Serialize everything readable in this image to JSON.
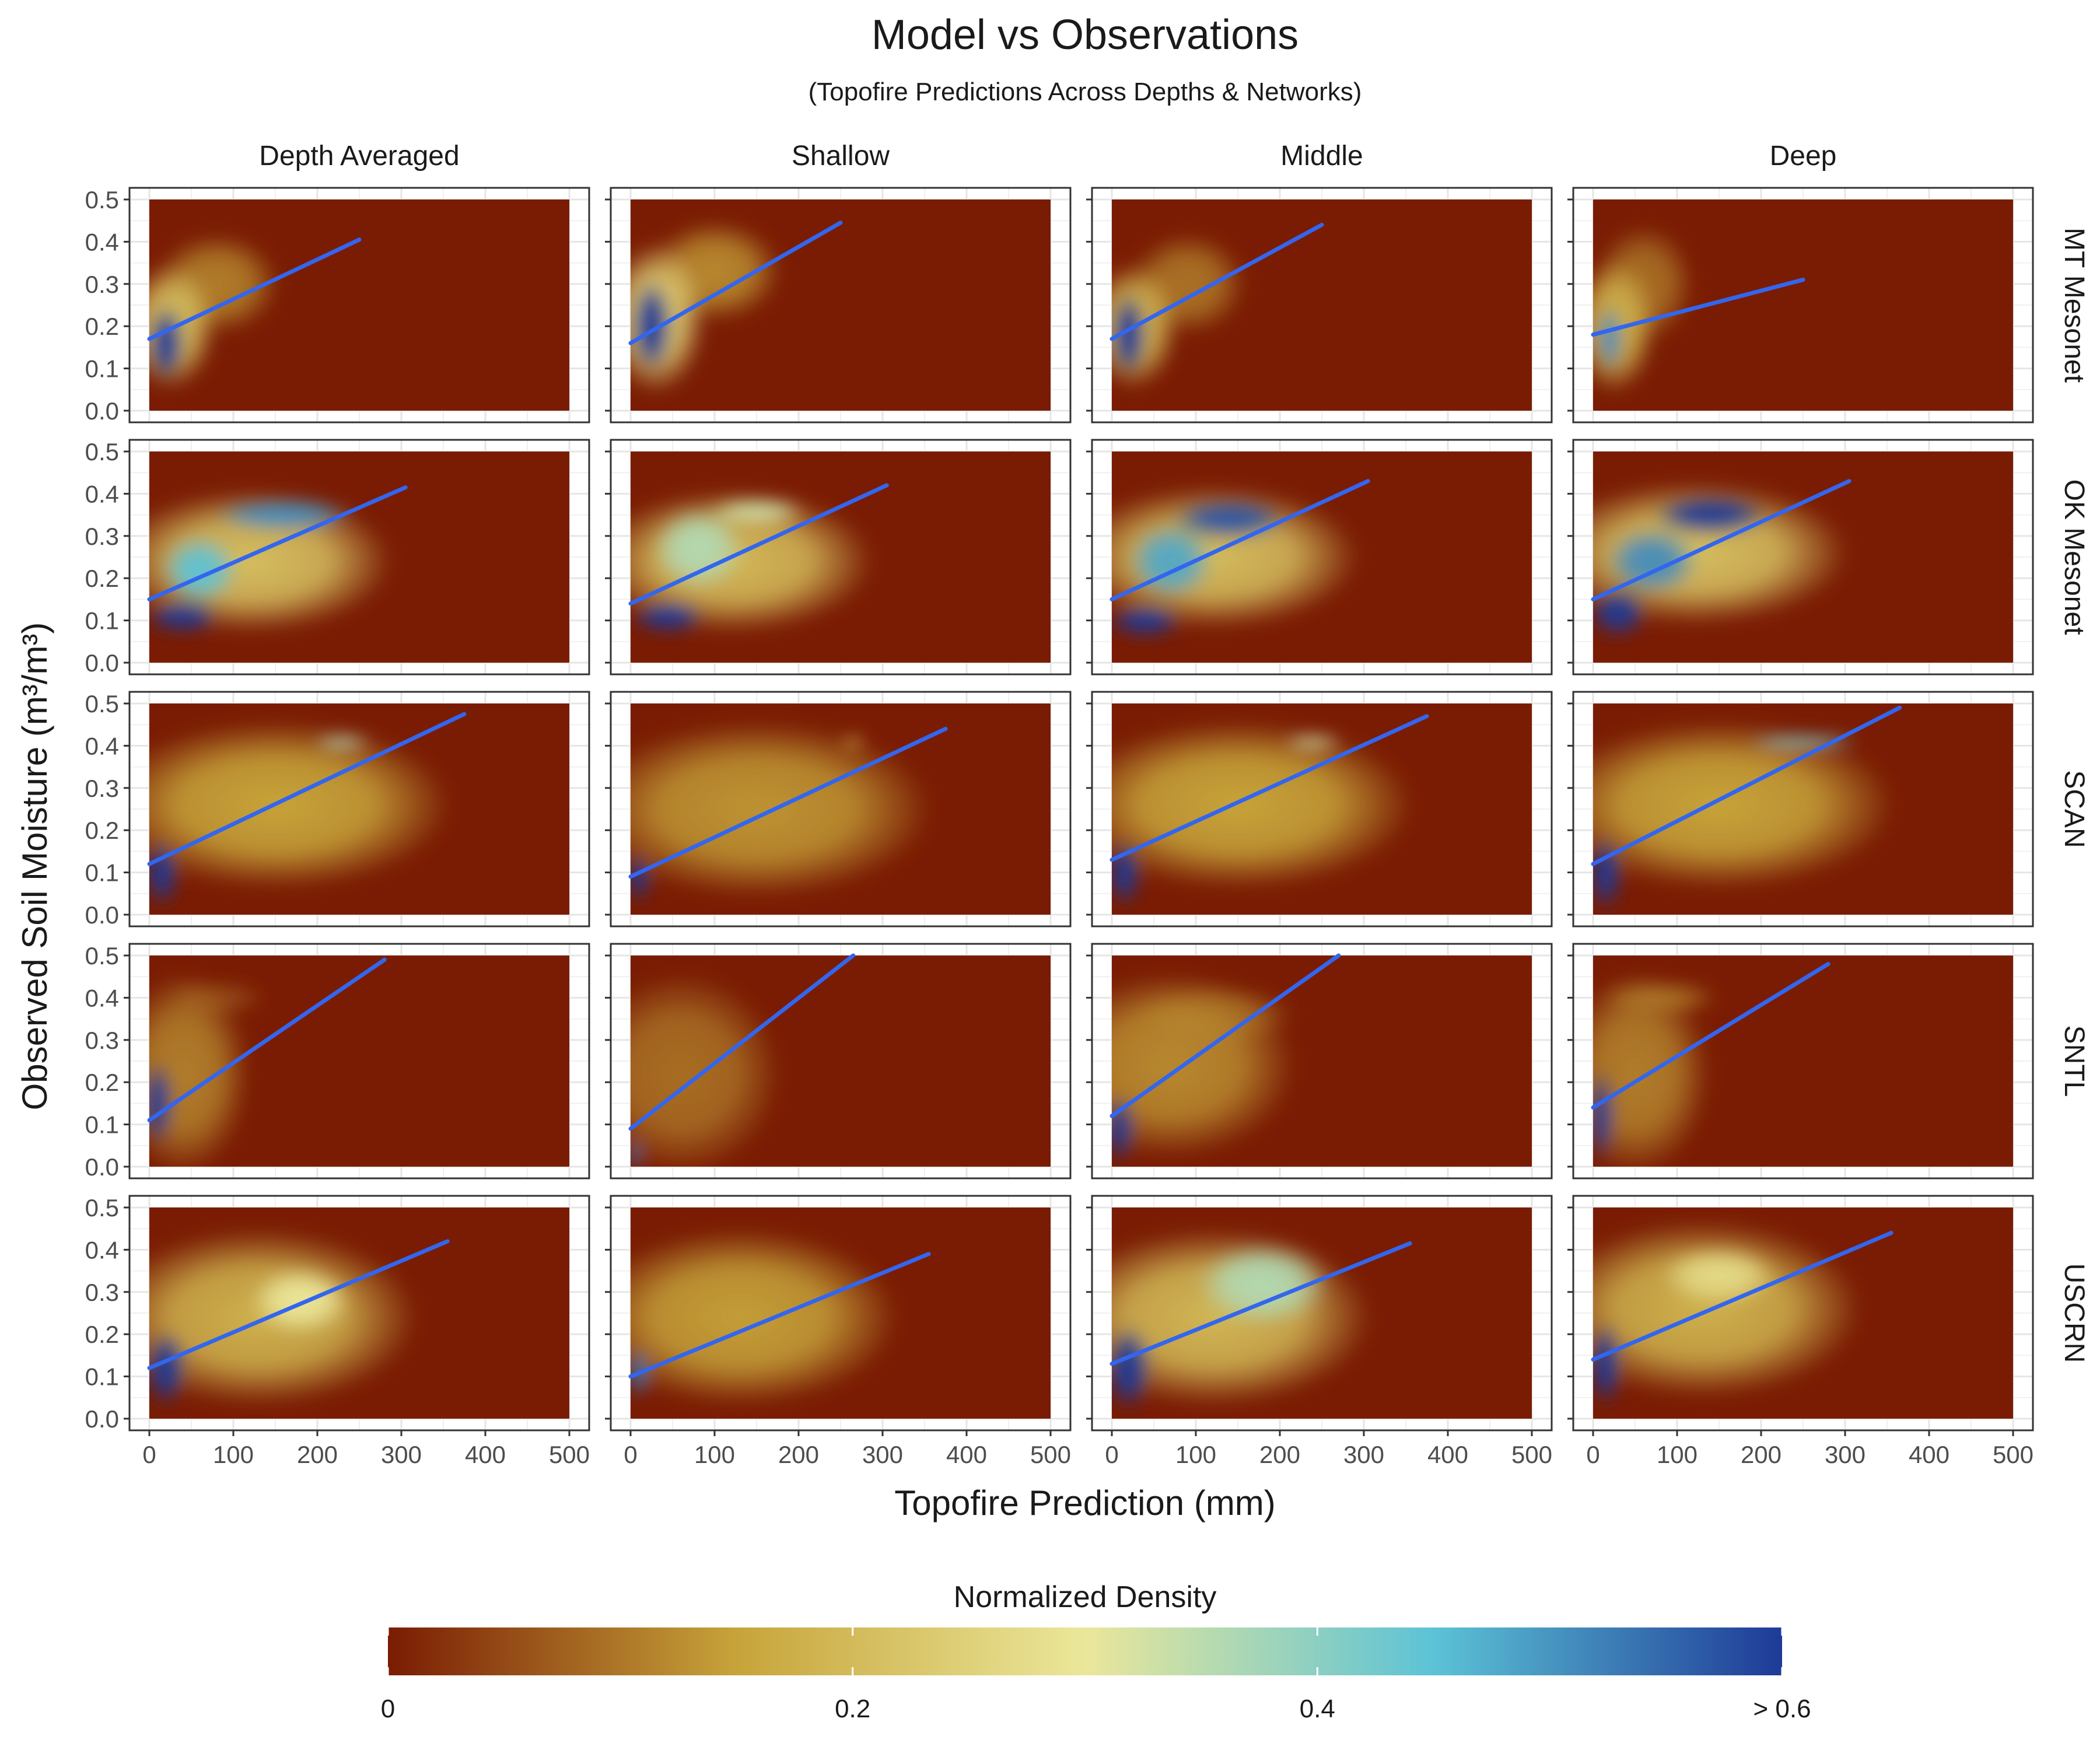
{
  "chart_data": {
    "type": "heatmap",
    "title": "Model vs Observations",
    "subtitle": "(Topofire Predictions Across Depths & Networks)",
    "xlabel": "Topofire Prediction (mm)",
    "ylabel": "Observed Soil Moisture (m³/m³)",
    "xlim": [
      0,
      500
    ],
    "ylim": [
      0,
      0.5
    ],
    "x_ticks": [
      "0",
      "100",
      "200",
      "300",
      "400",
      "500"
    ],
    "y_ticks": [
      "0.0",
      "0.1",
      "0.2",
      "0.3",
      "0.4",
      "0.5"
    ],
    "columns": [
      "Depth Averaged",
      "Shallow",
      "Middle",
      "Deep"
    ],
    "rows": [
      "MT Mesonet",
      "OK Mesonet",
      "SCAN",
      "SNTL",
      "USCRN"
    ],
    "colorbar": {
      "title": "Normalized Density",
      "range": [
        0,
        0.6
      ],
      "tick_labels": [
        {
          "value": 0,
          "label": "0"
        },
        {
          "value": 0.2,
          "label": "0.2"
        },
        {
          "value": 0.4,
          "label": "0.4"
        },
        {
          "value": 0.6,
          "label": "> 0.6"
        }
      ],
      "colors": [
        "#7a1c03",
        "#c7a43a",
        "#ebe79a",
        "#5cc3d6",
        "#1e3a97"
      ]
    },
    "background_color": "#7a1c03",
    "fit_line_color": "#3366ee",
    "panels": [
      {
        "row": "MT Mesonet",
        "col": "Depth Averaged",
        "fit": {
          "x": [
            0,
            250
          ],
          "y": [
            0.17,
            0.405
          ]
        },
        "density": [
          {
            "cx": 25,
            "cy": 0.2,
            "rx": 55,
            "ry": 0.15,
            "d": 0.35
          },
          {
            "cx": 20,
            "cy": 0.16,
            "rx": 22,
            "ry": 0.09,
            "d": 1.0
          },
          {
            "cx": 80,
            "cy": 0.3,
            "rx": 75,
            "ry": 0.12,
            "d": 0.18
          }
        ]
      },
      {
        "row": "MT Mesonet",
        "col": "Shallow",
        "fit": {
          "x": [
            0,
            250
          ],
          "y": [
            0.16,
            0.445
          ]
        },
        "density": [
          {
            "cx": 30,
            "cy": 0.22,
            "rx": 60,
            "ry": 0.18,
            "d": 0.4
          },
          {
            "cx": 25,
            "cy": 0.2,
            "rx": 25,
            "ry": 0.11,
            "d": 1.0
          },
          {
            "cx": 100,
            "cy": 0.33,
            "rx": 80,
            "ry": 0.12,
            "d": 0.2
          }
        ]
      },
      {
        "row": "MT Mesonet",
        "col": "Middle",
        "fit": {
          "x": [
            0,
            250
          ],
          "y": [
            0.17,
            0.44
          ]
        },
        "density": [
          {
            "cx": 25,
            "cy": 0.2,
            "rx": 55,
            "ry": 0.15,
            "d": 0.32
          },
          {
            "cx": 20,
            "cy": 0.18,
            "rx": 22,
            "ry": 0.1,
            "d": 1.0
          },
          {
            "cx": 90,
            "cy": 0.3,
            "rx": 70,
            "ry": 0.12,
            "d": 0.16
          }
        ]
      },
      {
        "row": "MT Mesonet",
        "col": "Deep",
        "fit": {
          "x": [
            0,
            250
          ],
          "y": [
            0.18,
            0.31
          ]
        },
        "density": [
          {
            "cx": 25,
            "cy": 0.2,
            "rx": 50,
            "ry": 0.16,
            "d": 0.3
          },
          {
            "cx": 20,
            "cy": 0.17,
            "rx": 15,
            "ry": 0.08,
            "d": 0.85
          },
          {
            "cx": 60,
            "cy": 0.3,
            "rx": 60,
            "ry": 0.14,
            "d": 0.15
          }
        ]
      },
      {
        "row": "OK Mesonet",
        "col": "Depth Averaged",
        "fit": {
          "x": [
            0,
            305
          ],
          "y": [
            0.15,
            0.415
          ]
        },
        "density": [
          {
            "cx": 120,
            "cy": 0.24,
            "rx": 170,
            "ry": 0.17,
            "d": 0.35
          },
          {
            "cx": 40,
            "cy": 0.11,
            "rx": 45,
            "ry": 0.04,
            "d": 1.0
          },
          {
            "cx": 60,
            "cy": 0.22,
            "rx": 45,
            "ry": 0.08,
            "d": 0.75
          },
          {
            "cx": 160,
            "cy": 0.35,
            "rx": 85,
            "ry": 0.04,
            "d": 0.85
          }
        ]
      },
      {
        "row": "OK Mesonet",
        "col": "Shallow",
        "fit": {
          "x": [
            0,
            305
          ],
          "y": [
            0.14,
            0.42
          ]
        },
        "density": [
          {
            "cx": 120,
            "cy": 0.24,
            "rx": 170,
            "ry": 0.17,
            "d": 0.33
          },
          {
            "cx": 45,
            "cy": 0.11,
            "rx": 45,
            "ry": 0.04,
            "d": 1.0
          },
          {
            "cx": 80,
            "cy": 0.27,
            "rx": 55,
            "ry": 0.1,
            "d": 0.6
          },
          {
            "cx": 150,
            "cy": 0.36,
            "rx": 60,
            "ry": 0.03,
            "d": 0.55
          }
        ]
      },
      {
        "row": "OK Mesonet",
        "col": "Middle",
        "fit": {
          "x": [
            0,
            305
          ],
          "y": [
            0.15,
            0.43
          ]
        },
        "density": [
          {
            "cx": 120,
            "cy": 0.25,
            "rx": 175,
            "ry": 0.17,
            "d": 0.34
          },
          {
            "cx": 40,
            "cy": 0.1,
            "rx": 45,
            "ry": 0.04,
            "d": 1.0
          },
          {
            "cx": 70,
            "cy": 0.24,
            "rx": 50,
            "ry": 0.09,
            "d": 0.8
          },
          {
            "cx": 140,
            "cy": 0.34,
            "rx": 70,
            "ry": 0.05,
            "d": 0.95
          }
        ]
      },
      {
        "row": "OK Mesonet",
        "col": "Deep",
        "fit": {
          "x": [
            0,
            305
          ],
          "y": [
            0.15,
            0.43
          ]
        },
        "density": [
          {
            "cx": 120,
            "cy": 0.26,
            "rx": 185,
            "ry": 0.17,
            "d": 0.35
          },
          {
            "cx": 30,
            "cy": 0.12,
            "rx": 35,
            "ry": 0.06,
            "d": 1.0
          },
          {
            "cx": 70,
            "cy": 0.24,
            "rx": 55,
            "ry": 0.08,
            "d": 0.85
          },
          {
            "cx": 140,
            "cy": 0.35,
            "rx": 70,
            "ry": 0.05,
            "d": 1.0
          }
        ]
      },
      {
        "row": "SCAN",
        "col": "Depth Averaged",
        "fit": {
          "x": [
            0,
            375
          ],
          "y": [
            0.12,
            0.475
          ]
        },
        "density": [
          {
            "cx": 150,
            "cy": 0.26,
            "rx": 210,
            "ry": 0.2,
            "d": 0.25
          },
          {
            "cx": 15,
            "cy": 0.1,
            "rx": 20,
            "ry": 0.08,
            "d": 1.0
          },
          {
            "cx": 230,
            "cy": 0.41,
            "rx": 35,
            "ry": 0.015,
            "d": 0.6
          }
        ]
      },
      {
        "row": "SCAN",
        "col": "Shallow",
        "fit": {
          "x": [
            0,
            375
          ],
          "y": [
            0.09,
            0.44
          ]
        },
        "density": [
          {
            "cx": 150,
            "cy": 0.25,
            "rx": 210,
            "ry": 0.21,
            "d": 0.22
          },
          {
            "cx": 10,
            "cy": 0.09,
            "rx": 14,
            "ry": 0.06,
            "d": 1.0
          },
          {
            "cx": 265,
            "cy": 0.41,
            "rx": 15,
            "ry": 0.012,
            "d": 0.3
          }
        ]
      },
      {
        "row": "SCAN",
        "col": "Middle",
        "fit": {
          "x": [
            0,
            375
          ],
          "y": [
            0.13,
            0.47
          ]
        },
        "density": [
          {
            "cx": 150,
            "cy": 0.26,
            "rx": 210,
            "ry": 0.2,
            "d": 0.25
          },
          {
            "cx": 15,
            "cy": 0.1,
            "rx": 20,
            "ry": 0.08,
            "d": 1.0
          },
          {
            "cx": 240,
            "cy": 0.41,
            "rx": 35,
            "ry": 0.015,
            "d": 0.55
          }
        ]
      },
      {
        "row": "SCAN",
        "col": "Deep",
        "fit": {
          "x": [
            0,
            365
          ],
          "y": [
            0.12,
            0.49
          ]
        },
        "density": [
          {
            "cx": 150,
            "cy": 0.26,
            "rx": 210,
            "ry": 0.2,
            "d": 0.25
          },
          {
            "cx": 15,
            "cy": 0.1,
            "rx": 20,
            "ry": 0.09,
            "d": 1.0
          },
          {
            "cx": 250,
            "cy": 0.41,
            "rx": 70,
            "ry": 0.015,
            "d": 0.7
          }
        ]
      },
      {
        "row": "SNTL",
        "col": "Depth Averaged",
        "fit": {
          "x": [
            0,
            280
          ],
          "y": [
            0.11,
            0.49
          ]
        },
        "density": [
          {
            "cx": 40,
            "cy": 0.22,
            "rx": 80,
            "ry": 0.24,
            "d": 0.18
          },
          {
            "cx": 10,
            "cy": 0.15,
            "rx": 18,
            "ry": 0.1,
            "d": 1.0
          },
          {
            "cx": 80,
            "cy": 0.4,
            "rx": 60,
            "ry": 0.04,
            "d": 0.08
          }
        ]
      },
      {
        "row": "SNTL",
        "col": "Shallow",
        "fit": {
          "x": [
            0,
            265
          ],
          "y": [
            0.09,
            0.5
          ]
        },
        "density": [
          {
            "cx": 60,
            "cy": 0.22,
            "rx": 120,
            "ry": 0.24,
            "d": 0.15
          },
          {
            "cx": 5,
            "cy": 0.03,
            "rx": 8,
            "ry": 0.04,
            "d": 0.9
          }
        ]
      },
      {
        "row": "SNTL",
        "col": "Middle",
        "fit": {
          "x": [
            0,
            270
          ],
          "y": [
            0.12,
            0.5
          ]
        },
        "density": [
          {
            "cx": 70,
            "cy": 0.24,
            "rx": 150,
            "ry": 0.22,
            "d": 0.2
          },
          {
            "cx": 10,
            "cy": 0.09,
            "rx": 18,
            "ry": 0.08,
            "d": 1.0
          },
          {
            "cx": 120,
            "cy": 0.36,
            "rx": 100,
            "ry": 0.07,
            "d": 0.12
          }
        ]
      },
      {
        "row": "SNTL",
        "col": "Deep",
        "fit": {
          "x": [
            0,
            280
          ],
          "y": [
            0.14,
            0.48
          ]
        },
        "density": [
          {
            "cx": 50,
            "cy": 0.22,
            "rx": 90,
            "ry": 0.24,
            "d": 0.18
          },
          {
            "cx": 10,
            "cy": 0.12,
            "rx": 15,
            "ry": 0.11,
            "d": 1.0
          },
          {
            "cx": 80,
            "cy": 0.4,
            "rx": 70,
            "ry": 0.04,
            "d": 0.15
          }
        ]
      },
      {
        "row": "USCRN",
        "col": "Depth Averaged",
        "fit": {
          "x": [
            0,
            355
          ],
          "y": [
            0.12,
            0.42
          ]
        },
        "density": [
          {
            "cx": 130,
            "cy": 0.24,
            "rx": 190,
            "ry": 0.21,
            "d": 0.3
          },
          {
            "cx": 20,
            "cy": 0.12,
            "rx": 25,
            "ry": 0.09,
            "d": 1.0
          },
          {
            "cx": 180,
            "cy": 0.28,
            "rx": 60,
            "ry": 0.08,
            "d": 0.5
          }
        ]
      },
      {
        "row": "USCRN",
        "col": "Shallow",
        "fit": {
          "x": [
            0,
            355
          ],
          "y": [
            0.1,
            0.39
          ]
        },
        "density": [
          {
            "cx": 130,
            "cy": 0.24,
            "rx": 190,
            "ry": 0.21,
            "d": 0.24
          },
          {
            "cx": 10,
            "cy": 0.11,
            "rx": 14,
            "ry": 0.06,
            "d": 0.9
          }
        ]
      },
      {
        "row": "USCRN",
        "col": "Middle",
        "fit": {
          "x": [
            0,
            355
          ],
          "y": [
            0.13,
            0.415
          ]
        },
        "density": [
          {
            "cx": 120,
            "cy": 0.24,
            "rx": 190,
            "ry": 0.21,
            "d": 0.32
          },
          {
            "cx": 20,
            "cy": 0.12,
            "rx": 28,
            "ry": 0.1,
            "d": 1.0
          },
          {
            "cx": 180,
            "cy": 0.32,
            "rx": 80,
            "ry": 0.1,
            "d": 0.6
          }
        ]
      },
      {
        "row": "USCRN",
        "col": "Deep",
        "fit": {
          "x": [
            0,
            355
          ],
          "y": [
            0.14,
            0.44
          ]
        },
        "density": [
          {
            "cx": 130,
            "cy": 0.26,
            "rx": 190,
            "ry": 0.21,
            "d": 0.3
          },
          {
            "cx": 15,
            "cy": 0.13,
            "rx": 20,
            "ry": 0.1,
            "d": 1.0
          },
          {
            "cx": 150,
            "cy": 0.34,
            "rx": 70,
            "ry": 0.07,
            "d": 0.45
          }
        ]
      }
    ]
  }
}
